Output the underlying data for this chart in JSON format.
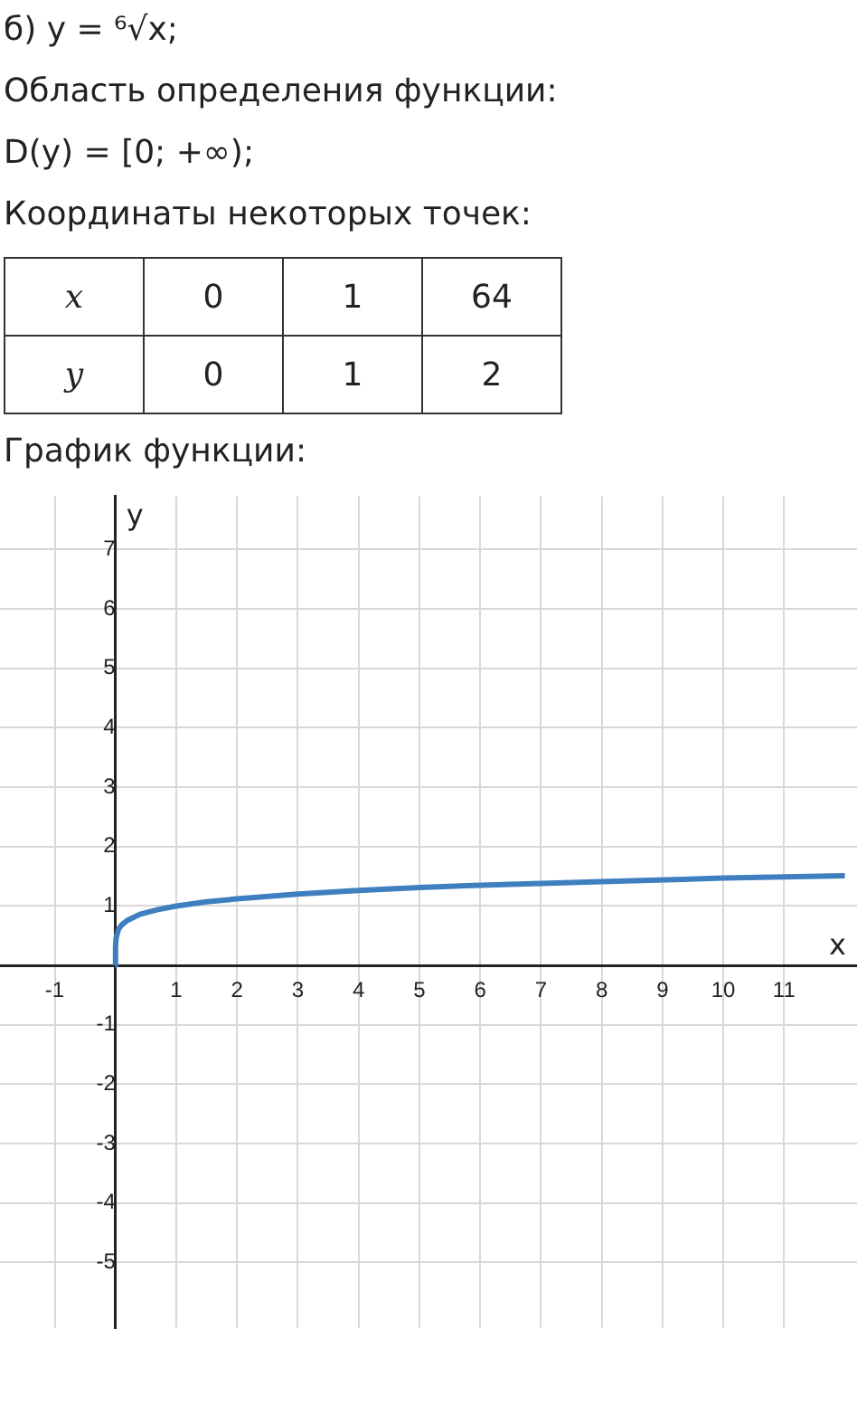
{
  "chart_data": [
    {
      "type": "other",
      "annotations": [
        "б) y = ⁶√x;",
        "Область определения функции:",
        "D(y) = [0; +∞);",
        "Координаты некоторых точек:"
      ],
      "xlabel": "x",
      "ylabel": "y",
      "categories": [
        "0",
        "1",
        "64"
      ],
      "values": [
        0,
        1,
        2
      ],
      "data_labels": true
    },
    {
      "type": "line",
      "title": "График функции:",
      "xlabel": "x",
      "ylabel": "y",
      "x": [
        0,
        0.001,
        0.01,
        0.05,
        0.1,
        0.2,
        0.4,
        0.7,
        1,
        1.5,
        2,
        3,
        4,
        5,
        6,
        8,
        10,
        12
      ],
      "series": [
        {
          "color": "#3f7fc0",
          "values": [
            0,
            0.32,
            0.46,
            0.61,
            0.68,
            0.76,
            0.86,
            0.94,
            1,
            1.07,
            1.12,
            1.2,
            1.26,
            1.31,
            1.35,
            1.41,
            1.47,
            1.51
          ]
        }
      ],
      "xlim": [
        -1.9,
        12.2
      ],
      "ylim": [
        -6.1,
        7.9
      ],
      "xticks": [
        -1,
        1,
        2,
        3,
        4,
        5,
        6,
        7,
        8,
        9,
        10,
        11
      ],
      "yticks": [
        -5,
        -4,
        -3,
        -2,
        -1,
        1,
        2,
        3,
        4,
        5,
        6,
        7
      ],
      "grid": true,
      "legend": false,
      "marker": "none",
      "line_style": "solid"
    }
  ]
}
